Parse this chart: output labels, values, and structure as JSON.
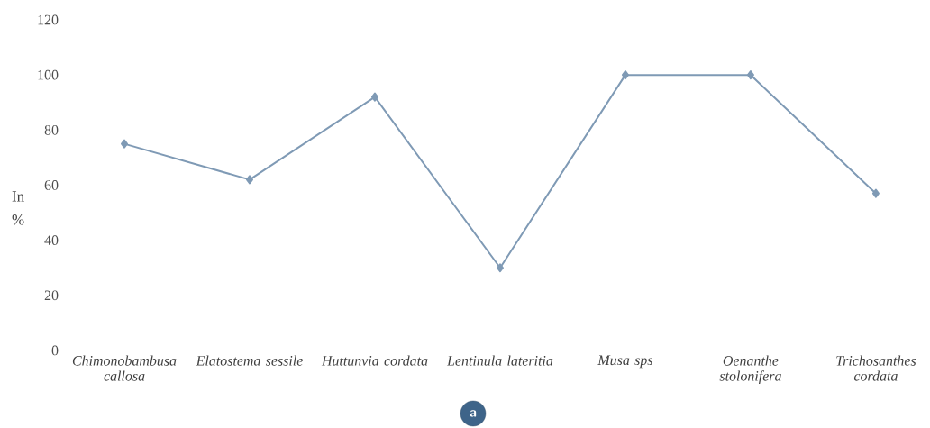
{
  "chart_data": {
    "type": "line",
    "ylabel": "In %",
    "categories": [
      "Chimonobambusa callosa",
      "Elatostema sessile",
      "Huttunvia cordata",
      "Lentinula lateritia",
      "Musa sps",
      "Oenanthe stolonifera",
      "Trichosanthes cordata"
    ],
    "series": [
      {
        "color": "#7f9ab5",
        "values": [
          75,
          62,
          92,
          30,
          100,
          100,
          57
        ]
      }
    ],
    "ylim": [
      0,
      120
    ],
    "yticks": [
      0,
      20,
      40,
      60,
      80,
      100,
      120
    ],
    "marker": "diamond",
    "line_style": "solid",
    "annotations": [
      "a"
    ]
  }
}
